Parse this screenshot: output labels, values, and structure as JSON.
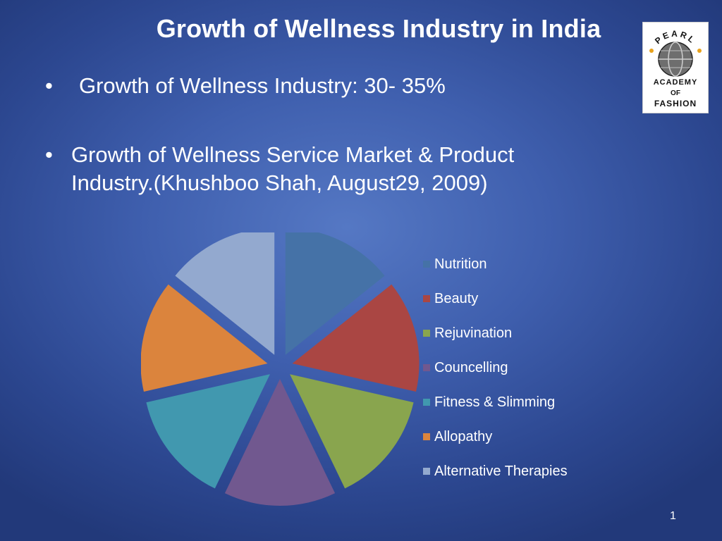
{
  "slide": {
    "title": "Growth of Wellness Industry in India",
    "bullets": [
      {
        "marker": "•",
        "text": "Growth of Wellness Industry: 30- 35%"
      },
      {
        "marker": "•",
        "text": "Growth of Wellness Service Market & Product Industry.(Khushboo Shah, August29, 2009)"
      }
    ],
    "page_number": "1"
  },
  "logo": {
    "top_text": "PEARL",
    "middle_text": "ACADEMY",
    "small_text": "OF",
    "bottom_text": "FASHION"
  },
  "chart_data": {
    "type": "pie",
    "exploded": true,
    "categories": [
      "Nutrition",
      "Beauty",
      "Rejuvination",
      "Councelling",
      "Fitness & Slimming",
      "Allopathy",
      "Alternative Therapies"
    ],
    "values": [
      1,
      1,
      1,
      1,
      1,
      1,
      1
    ],
    "colors": [
      "#4572a7",
      "#aa4643",
      "#89a54e",
      "#71588f",
      "#4198af",
      "#db843d",
      "#93a9cf"
    ],
    "legend_position": "right"
  }
}
